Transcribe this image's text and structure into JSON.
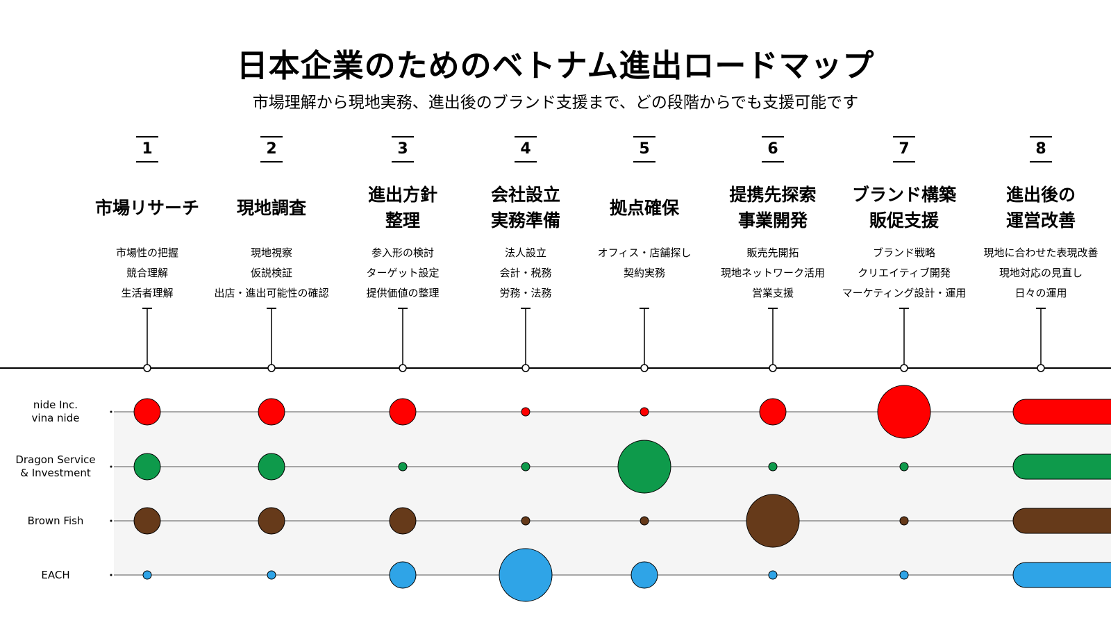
{
  "title": "日本企業のためのベトナム進出ロードマップ",
  "subtitle": "市場理解から現地実務、進出後のブランド支援まで、どの段階からでも支援可能です",
  "stages": [
    {
      "num": "1",
      "name": [
        "市場リサーチ"
      ],
      "items": [
        "市場性の把握",
        "競合理解",
        "生活者理解"
      ]
    },
    {
      "num": "2",
      "name": [
        "現地調査"
      ],
      "items": [
        "現地視察",
        "仮説検証",
        "出店・進出可能性の確認"
      ]
    },
    {
      "num": "3",
      "name": [
        "進出方針",
        "整理"
      ],
      "items": [
        "参入形の検討",
        "ターゲット設定",
        "提供価値の整理"
      ]
    },
    {
      "num": "4",
      "name": [
        "会社設立",
        "実務準備"
      ],
      "items": [
        "法人設立",
        "会計・税務",
        "労務・法務"
      ]
    },
    {
      "num": "5",
      "name": [
        "拠点確保"
      ],
      "items": [
        "オフィス・店舗探し",
        "契約実務"
      ]
    },
    {
      "num": "6",
      "name": [
        "提携先探索",
        "事業開発"
      ],
      "items": [
        "販売先開拓",
        "現地ネットワーク活用",
        "営業支援"
      ]
    },
    {
      "num": "7",
      "name": [
        "ブランド構築",
        "販促支援"
      ],
      "items": [
        "ブランド戦略",
        "クリエイティブ開発",
        "マーケティング設計・運用"
      ]
    },
    {
      "num": "8",
      "name": [
        "進出後の",
        "運営改善"
      ],
      "items": [
        "現地に合わせた表現改善",
        "現地対応の見直し",
        "日々の運用"
      ]
    }
  ],
  "companies": [
    {
      "name": [
        "nide Inc.",
        "vina nide"
      ],
      "color": "#ff0000",
      "levels": [
        2,
        2,
        2,
        1,
        1,
        2,
        4,
        3
      ]
    },
    {
      "name": [
        "Dragon Service",
        "& Investment"
      ],
      "color": "#0e9a4b",
      "levels": [
        2,
        2,
        1,
        1,
        4,
        1,
        1,
        3
      ]
    },
    {
      "name": [
        "Brown Fish"
      ],
      "color": "#663a1a",
      "levels": [
        2,
        2,
        2,
        1,
        1,
        4,
        1,
        3
      ]
    },
    {
      "name": [
        "EACH"
      ],
      "color": "#2fa4e7",
      "levels": [
        1,
        1,
        2,
        4,
        2,
        1,
        1,
        3
      ]
    }
  ],
  "level_legend_note": "",
  "chart_data": {
    "type": "bubble-matrix",
    "categories": [
      "市場リサーチ",
      "現地調査",
      "進出方針整理",
      "会社設立実務準備",
      "拠点確保",
      "提携先探索事業開発",
      "ブランド構築販促支援",
      "進出後の運営改善"
    ],
    "series": [
      {
        "name": "nide Inc. vina nide",
        "values": [
          2,
          2,
          2,
          1,
          1,
          2,
          4,
          3
        ]
      },
      {
        "name": "Dragon Service & Investment",
        "values": [
          2,
          2,
          1,
          1,
          4,
          1,
          1,
          3
        ]
      },
      {
        "name": "Brown Fish",
        "values": [
          2,
          2,
          2,
          1,
          1,
          4,
          1,
          3
        ]
      },
      {
        "name": "EACH",
        "values": [
          1,
          1,
          2,
          4,
          2,
          1,
          1,
          3
        ]
      }
    ]
  }
}
